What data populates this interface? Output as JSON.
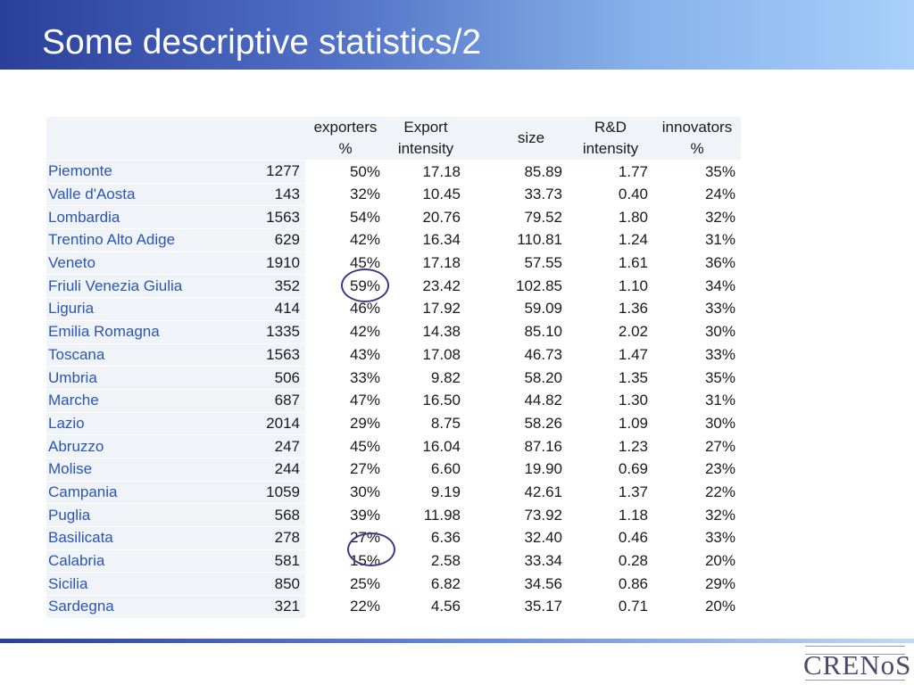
{
  "title": "Some descriptive statistics/2",
  "table": {
    "headers": [
      {
        "line1": "",
        "line2": ""
      },
      {
        "line1": "",
        "line2": ""
      },
      {
        "line1": "exporters",
        "line2": "%"
      },
      {
        "line1": "Export",
        "line2": "intensity"
      },
      {
        "line1": "",
        "line2": ""
      },
      {
        "line1": "size",
        "line2": ""
      },
      {
        "line1": "R&D",
        "line2": "intensity"
      },
      {
        "line1": "innovators",
        "line2": "%"
      }
    ],
    "rows": [
      {
        "region": "Piemonte",
        "n": "1277",
        "exporters": "50%",
        "export_intensity": "17.18",
        "size": "85.89",
        "rd_intensity": "1.77",
        "innovators": "35%"
      },
      {
        "region": "Valle d'Aosta",
        "n": "143",
        "exporters": "32%",
        "export_intensity": "10.45",
        "size": "33.73",
        "rd_intensity": "0.40",
        "innovators": "24%"
      },
      {
        "region": "Lombardia",
        "n": "1563",
        "exporters": "54%",
        "export_intensity": "20.76",
        "size": "79.52",
        "rd_intensity": "1.80",
        "innovators": "32%"
      },
      {
        "region": "Trentino Alto Adige",
        "n": "629",
        "exporters": "42%",
        "export_intensity": "16.34",
        "size": "110.81",
        "rd_intensity": "1.24",
        "innovators": "31%"
      },
      {
        "region": "Veneto",
        "n": "1910",
        "exporters": "45%",
        "export_intensity": "17.18",
        "size": "57.55",
        "rd_intensity": "1.61",
        "innovators": "36%"
      },
      {
        "region": "Friuli Venezia Giulia",
        "n": "352",
        "exporters": "59%",
        "export_intensity": "23.42",
        "size": "102.85",
        "rd_intensity": "1.10",
        "innovators": "34%"
      },
      {
        "region": "Liguria",
        "n": "414",
        "exporters": "46%",
        "export_intensity": "17.92",
        "size": "59.09",
        "rd_intensity": "1.36",
        "innovators": "33%"
      },
      {
        "region": "Emilia Romagna",
        "n": "1335",
        "exporters": "42%",
        "export_intensity": "14.38",
        "size": "85.10",
        "rd_intensity": "2.02",
        "innovators": "30%"
      },
      {
        "region": "Toscana",
        "n": "1563",
        "exporters": "43%",
        "export_intensity": "17.08",
        "size": "46.73",
        "rd_intensity": "1.47",
        "innovators": "33%"
      },
      {
        "region": "Umbria",
        "n": "506",
        "exporters": "33%",
        "export_intensity": "9.82",
        "size": "58.20",
        "rd_intensity": "1.35",
        "innovators": "35%"
      },
      {
        "region": "Marche",
        "n": "687",
        "exporters": "47%",
        "export_intensity": "16.50",
        "size": "44.82",
        "rd_intensity": "1.30",
        "innovators": "31%"
      },
      {
        "region": "Lazio",
        "n": "2014",
        "exporters": "29%",
        "export_intensity": "8.75",
        "size": "58.26",
        "rd_intensity": "1.09",
        "innovators": "30%"
      },
      {
        "region": "Abruzzo",
        "n": "247",
        "exporters": "45%",
        "export_intensity": "16.04",
        "size": "87.16",
        "rd_intensity": "1.23",
        "innovators": "27%"
      },
      {
        "region": "Molise",
        "n": "244",
        "exporters": "27%",
        "export_intensity": "6.60",
        "size": "19.90",
        "rd_intensity": "0.69",
        "innovators": "23%"
      },
      {
        "region": "Campania",
        "n": "1059",
        "exporters": "30%",
        "export_intensity": "9.19",
        "size": "42.61",
        "rd_intensity": "1.37",
        "innovators": "22%"
      },
      {
        "region": "Puglia",
        "n": "568",
        "exporters": "39%",
        "export_intensity": "11.98",
        "size": "73.92",
        "rd_intensity": "1.18",
        "innovators": "32%"
      },
      {
        "region": "Basilicata",
        "n": "278",
        "exporters": "27%",
        "export_intensity": "6.36",
        "size": "32.40",
        "rd_intensity": "0.46",
        "innovators": "33%"
      },
      {
        "region": "Calabria",
        "n": "581",
        "exporters": "15%",
        "export_intensity": "2.58",
        "size": "33.34",
        "rd_intensity": "0.28",
        "innovators": "20%"
      },
      {
        "region": "Sicilia",
        "n": "850",
        "exporters": "25%",
        "export_intensity": "6.82",
        "size": "34.56",
        "rd_intensity": "0.86",
        "innovators": "29%"
      },
      {
        "region": "Sardegna",
        "n": "321",
        "exporters": "22%",
        "export_intensity": "4.56",
        "size": "35.17",
        "rd_intensity": "0.71",
        "innovators": "20%"
      }
    ]
  },
  "highlights": [
    "Friuli Venezia Giulia",
    "Calabria"
  ],
  "logo": {
    "name": "CRENoS",
    "icon": "crenos-logo"
  },
  "colors": {
    "region_text": "#2a55b5",
    "circle": "#3a3a8a",
    "row_shade": "#f0f4f8"
  }
}
